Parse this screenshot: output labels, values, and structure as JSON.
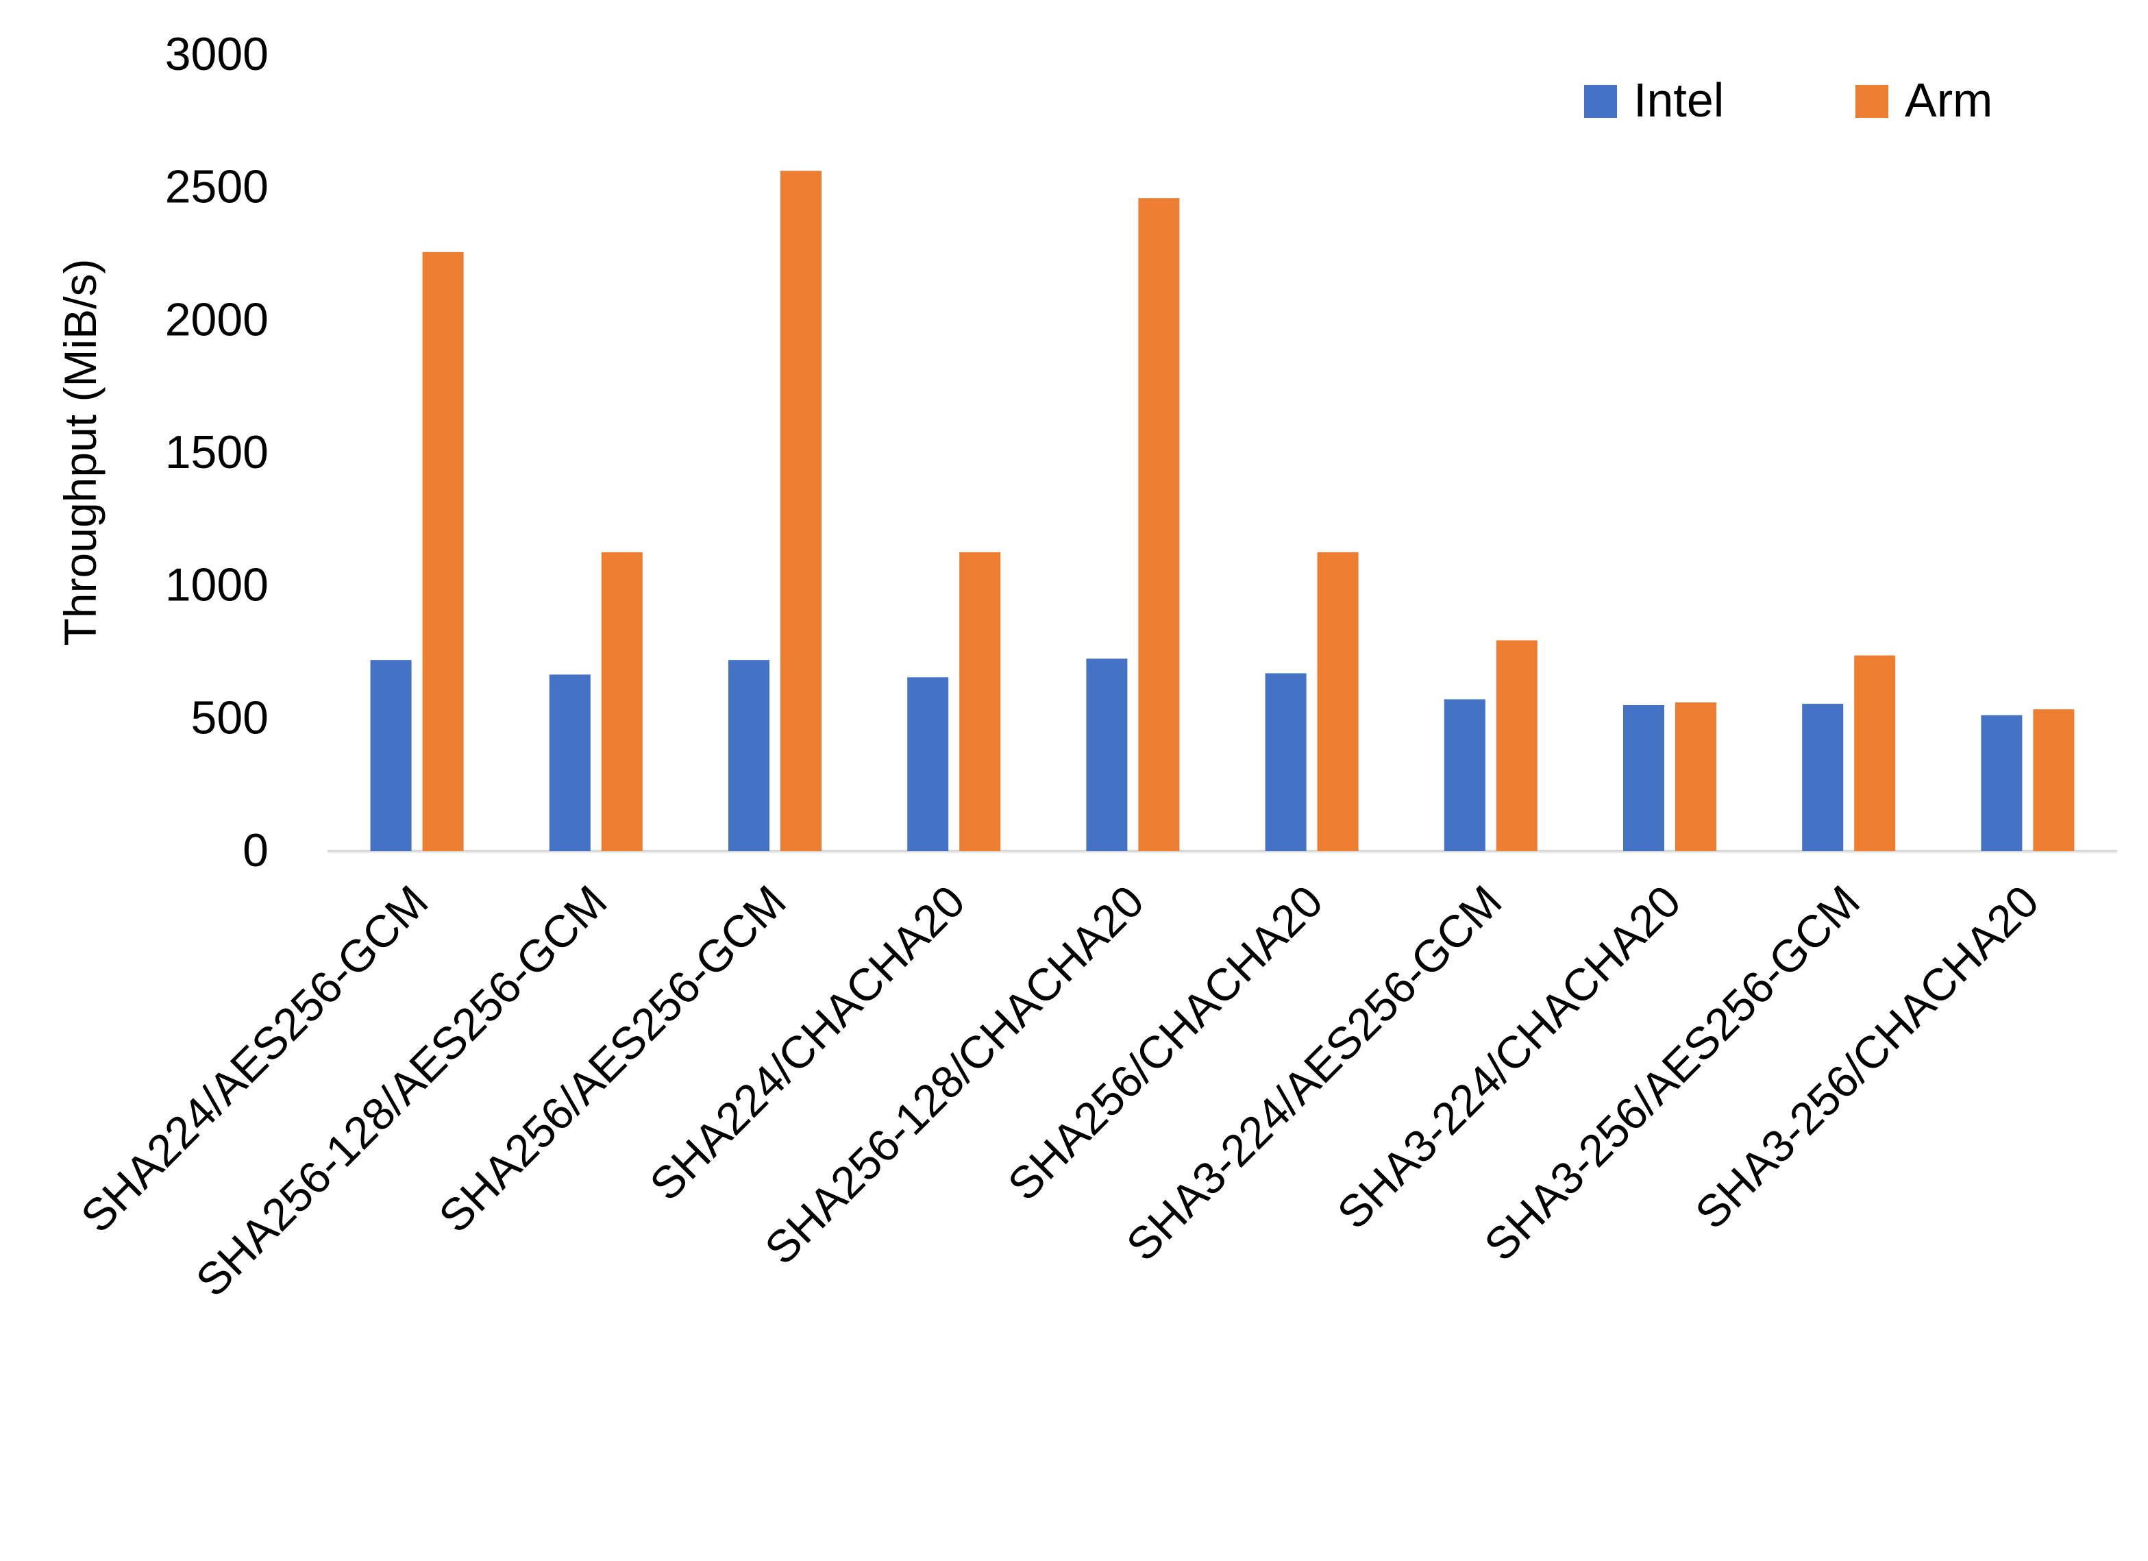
{
  "chart_data": {
    "type": "bar",
    "title": "",
    "xlabel": "",
    "ylabel": "Throughput (MiB/s)",
    "ylim": [
      0,
      3000
    ],
    "yticks": [
      "0",
      "500",
      "1000",
      "1500",
      "2000",
      "2500",
      "3000"
    ],
    "grid": false,
    "legend_position": "top-right",
    "categories": [
      "SHA224/AES256-GCM",
      "SHA256-128/AES256-GCM",
      "SHA256/AES256-GCM",
      "SHA224/CHACHA20",
      "SHA256-128/CHACHA20",
      "SHA256/CHACHA20",
      "SHA3-224/AES256-GCM",
      "SHA3-224/CHACHA20",
      "SHA3-256/AES256-GCM",
      "SHA3-256/CHACHA20"
    ],
    "series": [
      {
        "name": "Intel",
        "color": "#4472C4",
        "values": [
          720,
          665,
          720,
          655,
          725,
          670,
          572,
          550,
          555,
          512
        ]
      },
      {
        "name": "Arm",
        "color": "#ED7D31",
        "values": [
          2257,
          1126,
          2563,
          1126,
          2460,
          1126,
          794,
          560,
          737,
          534
        ]
      }
    ]
  }
}
